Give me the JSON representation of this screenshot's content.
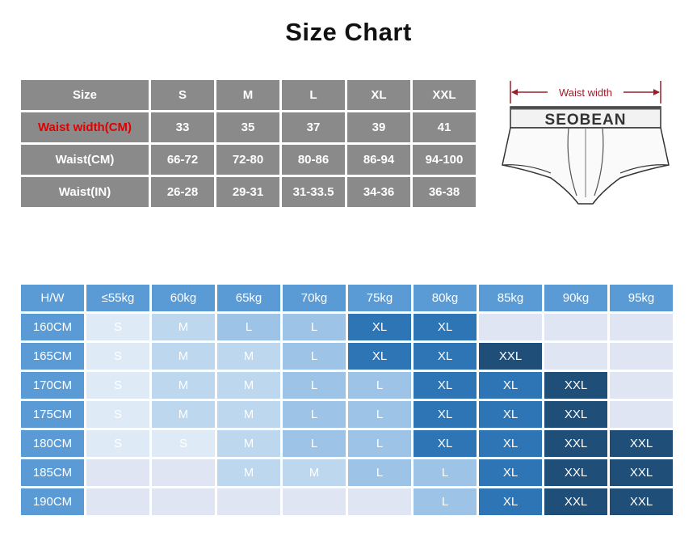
{
  "title": "Size Chart",
  "size_table": {
    "header": [
      "Size",
      "S",
      "M",
      "L",
      "XL",
      "XXL"
    ],
    "rows": [
      {
        "label": "Waist width(CM)",
        "highlight": "#e00000",
        "values": [
          "33",
          "35",
          "37",
          "39",
          "41"
        ]
      },
      {
        "label": "Waist(CM)",
        "values": [
          "66-72",
          "72-80",
          "80-86",
          "86-94",
          "94-100"
        ]
      },
      {
        "label": "Waist(IN)",
        "values": [
          "26-28",
          "29-31",
          "31-33.5",
          "34-36",
          "36-38"
        ]
      }
    ]
  },
  "illustration": {
    "brand": "SEOBEAN",
    "dimension_label": "Waist width",
    "arrow_color": "#9b1c2a"
  },
  "hw_table": {
    "corner": "H/W",
    "weights": [
      "≤55kg",
      "60kg",
      "65kg",
      "70kg",
      "75kg",
      "80kg",
      "85kg",
      "90kg",
      "95kg"
    ],
    "heights": [
      "160CM",
      "165CM",
      "170CM",
      "175CM",
      "180CM",
      "185CM",
      "190CM"
    ],
    "cells": [
      [
        "S",
        "M",
        "L",
        "L",
        "XL",
        "XL",
        "",
        "",
        ""
      ],
      [
        "S",
        "M",
        "M",
        "L",
        "XL",
        "XL",
        "XXL",
        "",
        ""
      ],
      [
        "S",
        "M",
        "M",
        "L",
        "L",
        "XL",
        "XL",
        "XXL",
        ""
      ],
      [
        "S",
        "M",
        "M",
        "L",
        "L",
        "XL",
        "XL",
        "XXL",
        ""
      ],
      [
        "S",
        "S",
        "M",
        "L",
        "L",
        "XL",
        "XL",
        "XXL",
        "XXL"
      ],
      [
        "",
        "",
        "M",
        "M",
        "L",
        "L",
        "XL",
        "XXL",
        "XXL"
      ],
      [
        "",
        "",
        "",
        "",
        "",
        "L",
        "XL",
        "XXL",
        "XXL"
      ]
    ],
    "size_colors": {
      "S": "#deebf6",
      "M": "#bdd7ee",
      "L": "#9dc3e6",
      "XL": "#2e75b6",
      "XXL": "#1f4e79",
      "empty": "#dfe5f2"
    },
    "header_color": "#5b9bd5"
  }
}
